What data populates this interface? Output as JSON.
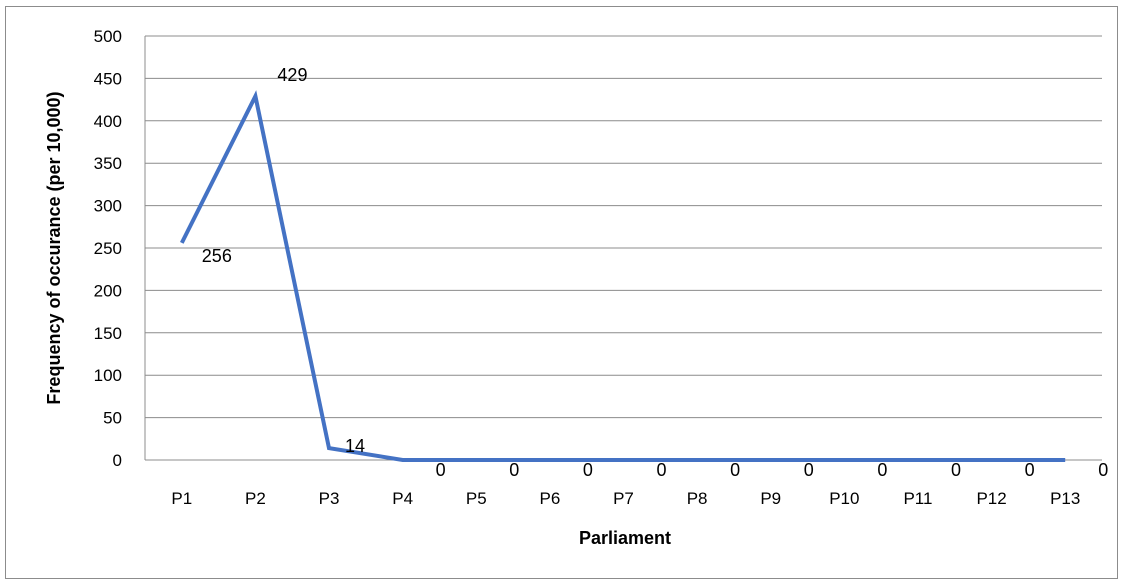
{
  "chart_data": {
    "type": "line",
    "categories": [
      "P1",
      "P2",
      "P3",
      "P4",
      "P5",
      "P6",
      "P7",
      "P8",
      "P9",
      "P10",
      "P11",
      "P12",
      "P13"
    ],
    "series": [
      {
        "values": [
          256,
          429,
          14,
          0,
          0,
          0,
          0,
          0,
          0,
          0,
          0,
          0,
          0
        ],
        "color": "#4472C4"
      }
    ],
    "data_labels": [
      "256",
      "429",
      "14",
      "0",
      "0",
      "0",
      "0",
      "0",
      "0",
      "0",
      "0",
      "0",
      "0"
    ],
    "xlabel": "Parliament",
    "ylabel": "Frequency of occurance (per 10,000)",
    "ylim": [
      0,
      500
    ],
    "yticks": [
      0,
      50,
      100,
      150,
      200,
      250,
      300,
      350,
      400,
      450,
      500
    ],
    "grid": true,
    "legend": "none",
    "gridline_color": "#8c8c8c"
  }
}
